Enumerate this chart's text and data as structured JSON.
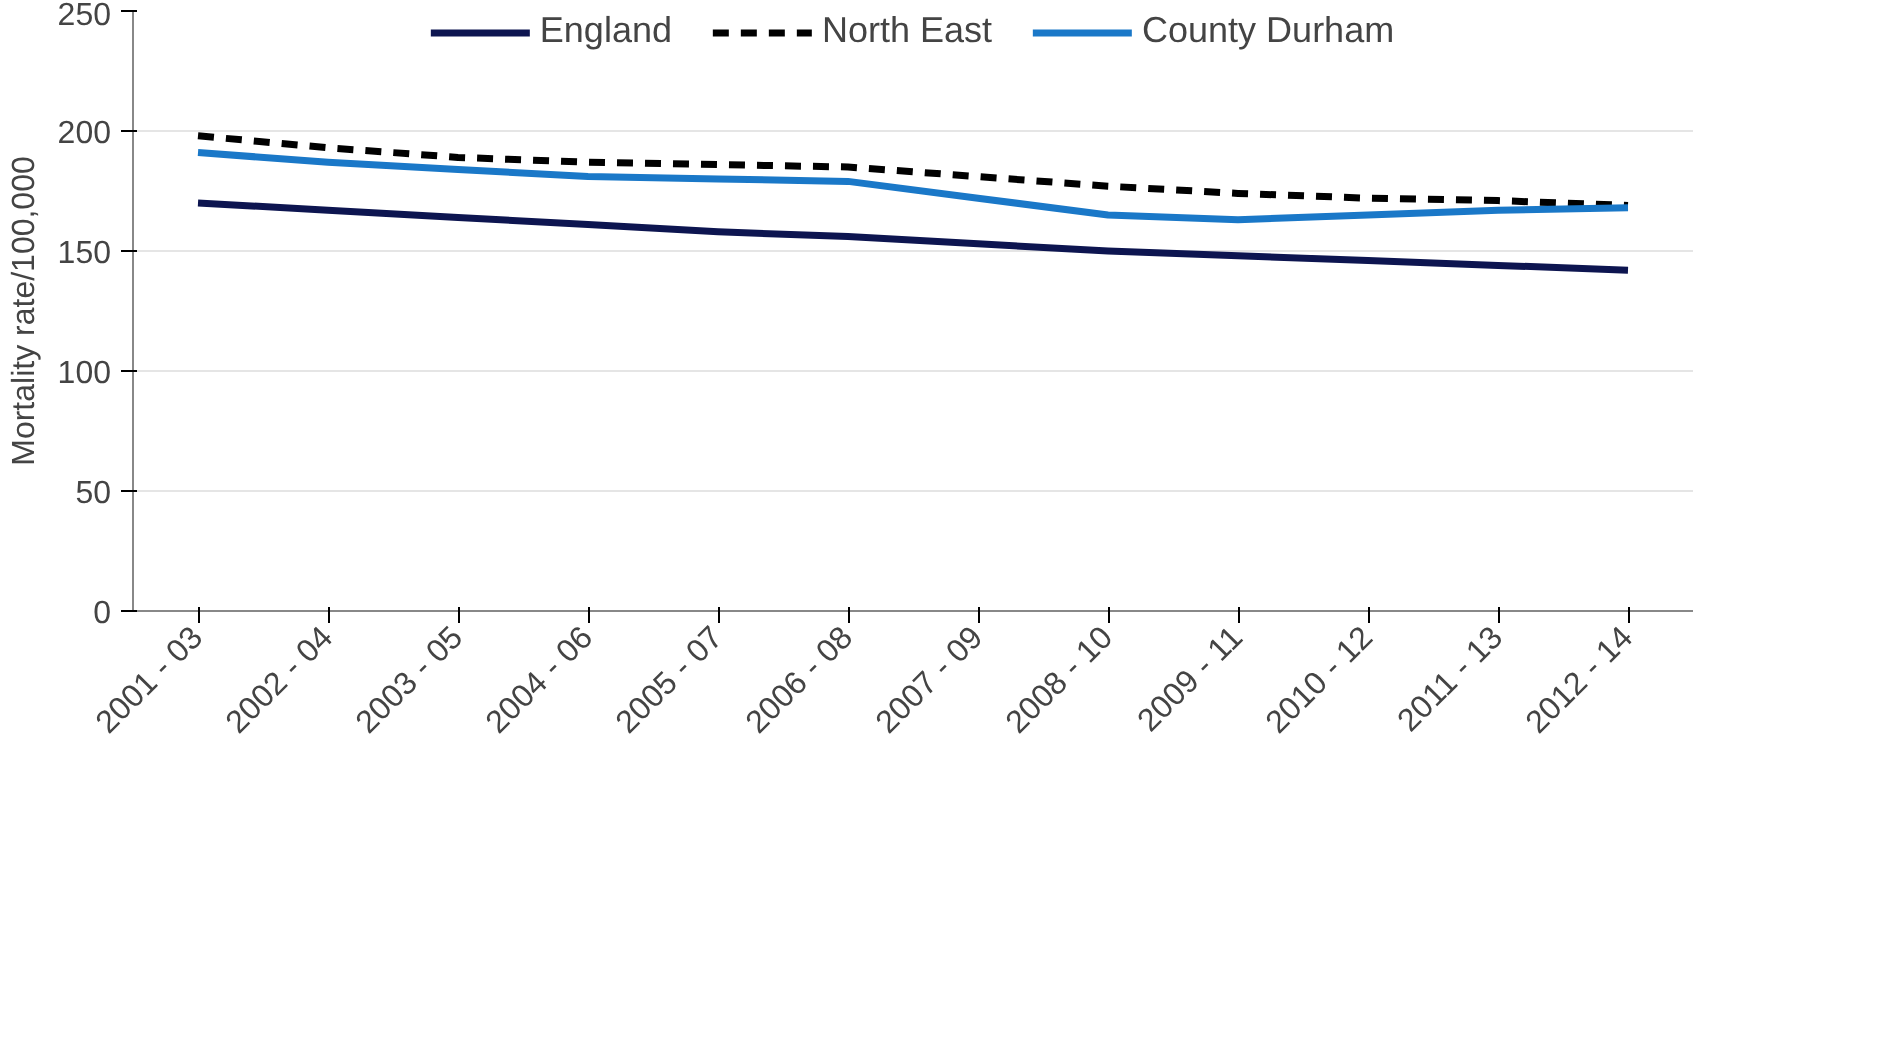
{
  "chart_data": {
    "type": "line",
    "ylabel": "Mortality rate/100,000",
    "categories": [
      "2001 - 03",
      "2002 - 04",
      "2003 - 05",
      "2004 - 06",
      "2005 - 07",
      "2006 - 08",
      "2007 - 09",
      "2008 - 10",
      "2009 - 11",
      "2010 - 12",
      "2011 - 13",
      "2012 - 14"
    ],
    "series": [
      {
        "name": "England",
        "color": "#0d1550",
        "line_style": "solid",
        "values": [
          170,
          167,
          164,
          161,
          158,
          156,
          153,
          150,
          148,
          146,
          144,
          142
        ]
      },
      {
        "name": "North East",
        "color": "#000000",
        "line_style": "dashed",
        "values": [
          198,
          193,
          189,
          187,
          186,
          185,
          181,
          177,
          174,
          172,
          171,
          169
        ]
      },
      {
        "name": "County Durham",
        "color": "#1a78c8",
        "line_style": "solid",
        "values": [
          191,
          187,
          184,
          181,
          180,
          179,
          172,
          165,
          163,
          165,
          167,
          168
        ]
      }
    ],
    "ylim": [
      0,
      250
    ],
    "yticks": [
      0,
      50,
      100,
      150,
      200,
      250
    ],
    "grid": "y",
    "legend": "top",
    "marker": "none"
  }
}
